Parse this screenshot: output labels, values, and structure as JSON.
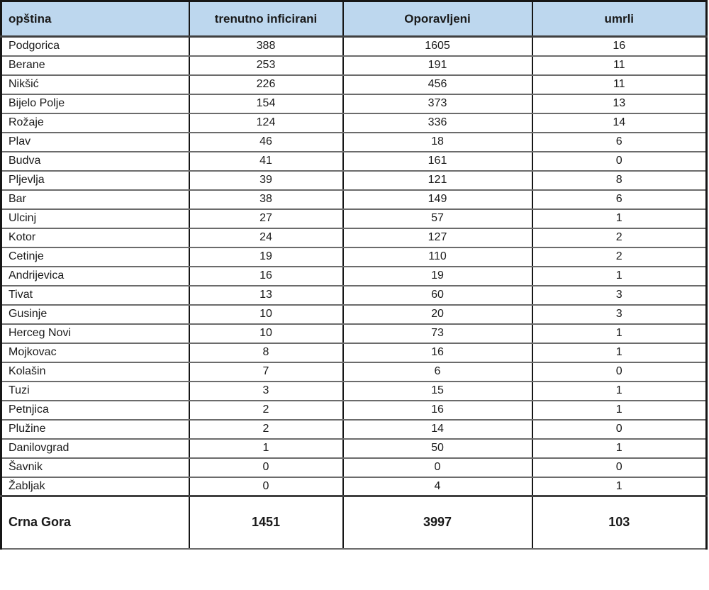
{
  "colors": {
    "header_bg": "#bdd7ee",
    "header_text": "#1a1a1a",
    "cell_text": "#1a1a1a",
    "column_border": "#161616",
    "row_border": "#6b6b6b",
    "row_bg": "#ffffff"
  },
  "chart_data": {
    "type": "table",
    "title": "",
    "columns": [
      "opština",
      "trenutno inficirani",
      "Oporavljeni",
      "umrli"
    ],
    "rows": [
      [
        "Podgorica",
        388,
        1605,
        16
      ],
      [
        "Berane",
        253,
        191,
        11
      ],
      [
        "Nikšić",
        226,
        456,
        11
      ],
      [
        "Bijelo Polje",
        154,
        373,
        13
      ],
      [
        "Rožaje",
        124,
        336,
        14
      ],
      [
        "Plav",
        46,
        18,
        6
      ],
      [
        "Budva",
        41,
        161,
        0
      ],
      [
        "Pljevlja",
        39,
        121,
        8
      ],
      [
        "Bar",
        38,
        149,
        6
      ],
      [
        "Ulcinj",
        27,
        57,
        1
      ],
      [
        "Kotor",
        24,
        127,
        2
      ],
      [
        "Cetinje",
        19,
        110,
        2
      ],
      [
        "Andrijevica",
        16,
        19,
        1
      ],
      [
        "Tivat",
        13,
        60,
        3
      ],
      [
        "Gusinje",
        10,
        20,
        3
      ],
      [
        "Herceg Novi",
        10,
        73,
        1
      ],
      [
        "Mojkovac",
        8,
        16,
        1
      ],
      [
        "Kolašin",
        7,
        6,
        0
      ],
      [
        "Tuzi",
        3,
        15,
        1
      ],
      [
        "Petnjica",
        2,
        16,
        1
      ],
      [
        "Plužine",
        2,
        14,
        0
      ],
      [
        "Danilovgrad",
        1,
        50,
        1
      ],
      [
        "Šavnik",
        0,
        0,
        0
      ],
      [
        "Žabljak",
        0,
        4,
        1
      ]
    ],
    "total_row": [
      "Crna Gora",
      1451,
      3997,
      103
    ]
  }
}
